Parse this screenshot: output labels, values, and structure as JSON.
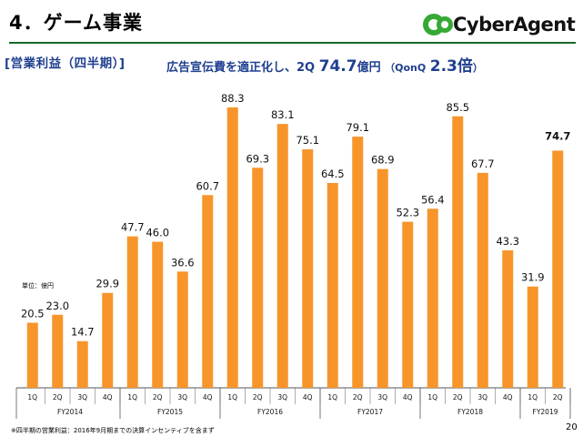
{
  "header": {
    "title": "4．ゲーム事業",
    "brand": "CyberAgent",
    "brand_color": "#36a935"
  },
  "subtitle": "[営業利益（四半期）]",
  "headline": {
    "prefix": "広告宣伝費を適正化し、2Q",
    "value": "74.7",
    "unit": "億円",
    "suffix_open": "（QonQ",
    "qonq": "2.3倍",
    "suffix_close": "）"
  },
  "unit_label": "単位：億円",
  "footnote": "※四半期の営業利益：2016年9月期までの決算インセンティブを含まず",
  "page_number": "20",
  "chart_data": {
    "type": "bar",
    "bar_color": "#f7952b",
    "groups": [
      {
        "year": "FY2014",
        "quarters": [
          "1Q",
          "2Q",
          "3Q",
          "4Q"
        ],
        "values": [
          20.5,
          23.0,
          14.7,
          29.9
        ],
        "labels": [
          "20.5",
          "23.0",
          "14.7",
          "29.9"
        ]
      },
      {
        "year": "FY2015",
        "quarters": [
          "1Q",
          "2Q",
          "3Q",
          "4Q"
        ],
        "values": [
          47.7,
          46.0,
          36.6,
          60.7
        ],
        "labels": [
          "47.7",
          "46.0",
          "36.6",
          "60.7"
        ]
      },
      {
        "year": "FY2016",
        "quarters": [
          "1Q",
          "2Q",
          "3Q",
          "4Q"
        ],
        "values": [
          88.3,
          69.3,
          83.1,
          75.1
        ],
        "labels": [
          "88.3",
          "69.3",
          "83.1",
          "75.1"
        ]
      },
      {
        "year": "FY2017",
        "quarters": [
          "1Q",
          "2Q",
          "3Q",
          "4Q"
        ],
        "values": [
          64.5,
          79.1,
          68.9,
          52.3
        ],
        "labels": [
          "64.5",
          "79.1",
          "68.9",
          "52.3"
        ]
      },
      {
        "year": "FY2018",
        "quarters": [
          "1Q",
          "2Q",
          "3Q",
          "4Q"
        ],
        "values": [
          56.4,
          85.5,
          67.7,
          43.3
        ],
        "labels": [
          "56.4",
          "85.5",
          "67.7",
          "43.3"
        ]
      },
      {
        "year": "FY2019",
        "quarters": [
          "1Q",
          "2Q"
        ],
        "values": [
          31.9,
          74.7
        ],
        "labels": [
          "31.9",
          "74.7"
        ]
      }
    ],
    "ylim": [
      0,
      88.3
    ],
    "highlight_last": true,
    "grid": false
  }
}
